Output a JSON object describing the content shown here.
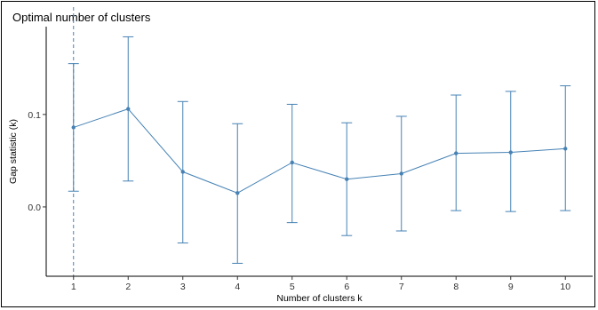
{
  "chart_data": {
    "type": "line",
    "title": "Optimal number of clusters",
    "xlabel": "Number of clusters k",
    "ylabel": "Gap statistic (k)",
    "x": [
      1,
      2,
      3,
      4,
      5,
      6,
      7,
      8,
      9,
      10
    ],
    "series": [
      {
        "values": [
          0.086,
          0.106,
          0.038,
          0.015,
          0.048,
          0.03,
          0.036,
          0.058,
          0.059,
          0.063
        ],
        "err_low": [
          0.017,
          0.028,
          -0.039,
          -0.061,
          -0.017,
          -0.031,
          -0.026,
          -0.004,
          -0.005,
          -0.004
        ],
        "err_high": [
          0.155,
          0.184,
          0.114,
          0.09,
          0.111,
          0.091,
          0.098,
          0.121,
          0.125,
          0.131
        ]
      }
    ],
    "optimal_k": 1,
    "ylim": [
      -0.075,
      0.195
    ],
    "xlim": [
      0.5,
      10.5
    ],
    "yticks": [
      0.0,
      0.1
    ],
    "ytick_labels": [
      "0.0",
      "0.1"
    ],
    "grid": false,
    "color": "#4682B4"
  }
}
